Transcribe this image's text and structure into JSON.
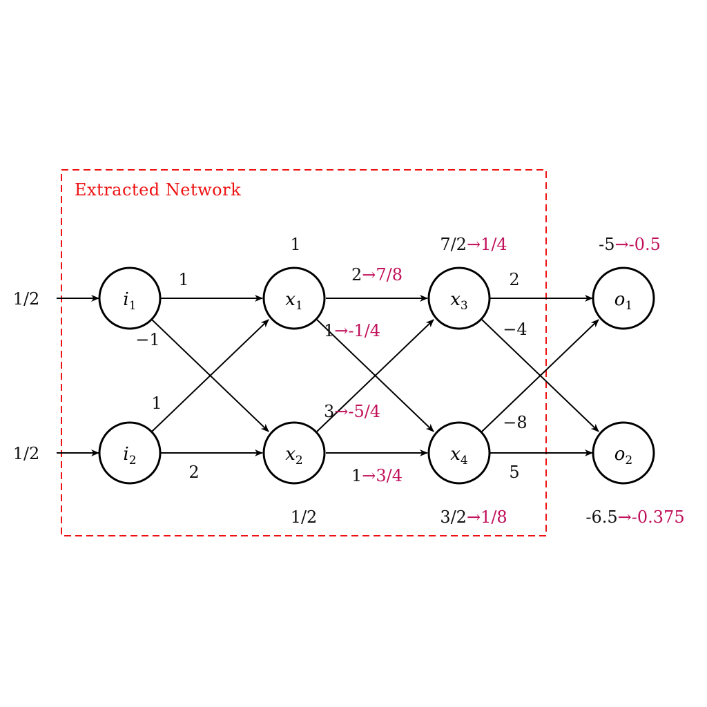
{
  "frame": {
    "title": "Extracted Network",
    "color": "#ee1111"
  },
  "highlight_color": "#c0105a",
  "inputs": {
    "i1": "1/2",
    "i2": "1/2"
  },
  "nodes": {
    "i1": {
      "base": "i",
      "sub": "1"
    },
    "i2": {
      "base": "i",
      "sub": "2"
    },
    "x1": {
      "base": "x",
      "sub": "1"
    },
    "x2": {
      "base": "x",
      "sub": "2"
    },
    "x3": {
      "base": "x",
      "sub": "3"
    },
    "x4": {
      "base": "x",
      "sub": "4"
    },
    "o1": {
      "base": "o",
      "sub": "1"
    },
    "o2": {
      "base": "o",
      "sub": "2"
    }
  },
  "node_values": {
    "x1": "1",
    "x2": "1/2",
    "x3": {
      "from": "7/2",
      "to": "→1/4"
    },
    "x4": {
      "from": "3/2",
      "to": "→1/8"
    },
    "o1": {
      "from": "-5",
      "to": "→-0.5"
    },
    "o2": {
      "from": "-6.5",
      "to": "→-0.375"
    }
  },
  "edges": {
    "i1_x1": "1",
    "i1_x2": "−1",
    "i2_x1": "1",
    "i2_x2": "2",
    "x1_x3": {
      "from": "2",
      "to": "→7/8"
    },
    "x1_x4": {
      "from": "1",
      "to": "→-1/4"
    },
    "x2_x3": {
      "from": "3",
      "to": "→-5/4"
    },
    "x2_x4": {
      "from": "1",
      "to": "→3/4"
    },
    "x3_o1": "2",
    "x3_o2": "−4",
    "x4_o1": "−8",
    "x4_o2": "5"
  }
}
